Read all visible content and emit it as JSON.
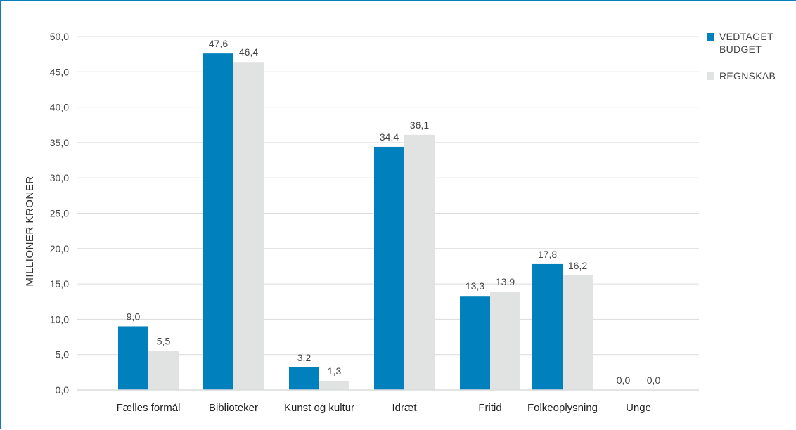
{
  "colors": {
    "budget": "#0080bd",
    "regnskab": "#e1e3e3",
    "grid": "#dcdcdc",
    "axis": "#333333",
    "frame": "#0a7fbd"
  },
  "chart_data": {
    "type": "bar",
    "ylabel": "MILLIONER KRONER",
    "ylim": [
      0,
      50
    ],
    "ytick_step": 5,
    "ytick_labels": [
      "0,0",
      "5,0",
      "10,0",
      "15,0",
      "20,0",
      "25,0",
      "30,0",
      "35,0",
      "40,0",
      "45,0",
      "50,0"
    ],
    "grid": true,
    "legend_position": "top-right",
    "categories": [
      "Fælles formål",
      "Biblioteker",
      "Kunst og kultur",
      "Idræt",
      "Fritid",
      "Folkeoplysning",
      "Unge"
    ],
    "series": [
      {
        "name": "VEDTAGET BUDGET",
        "legend_lines": [
          "VEDTAGET",
          "BUDGET"
        ],
        "color": "#0080bd",
        "values": [
          9.0,
          47.6,
          3.2,
          34.4,
          13.3,
          17.8,
          0.0
        ],
        "labels": [
          "9,0",
          "47,6",
          "3,2",
          "34,4",
          "13,3",
          "17,8",
          "0,0"
        ]
      },
      {
        "name": "REGNSKAB",
        "legend_lines": [
          "REGNSKAB"
        ],
        "color": "#e1e3e3",
        "values": [
          5.5,
          46.4,
          1.3,
          36.1,
          13.9,
          16.2,
          0.0
        ],
        "labels": [
          "5,5",
          "46,4",
          "1,3",
          "36,1",
          "13,9",
          "16,2",
          "0,0"
        ]
      }
    ]
  }
}
